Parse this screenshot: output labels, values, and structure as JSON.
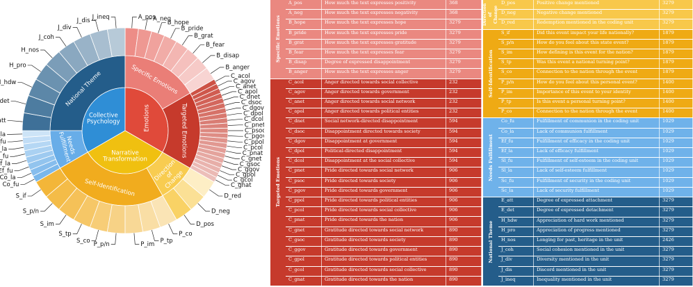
{
  "sunburst": {
    "inner": [
      {
        "label": "Collective Psychology",
        "color": "#2f8ed6"
      },
      {
        "label": "Emotions",
        "color": "#e04a3a"
      },
      {
        "label": "Narrative Transformation",
        "color": "#f0c010"
      }
    ],
    "middle": [
      {
        "label": "National Theme",
        "color": "#245d8a"
      },
      {
        "label": "Needs Fulfillment",
        "color": "#68ade8"
      },
      {
        "label": "Specific Emotions",
        "color": "#ea7e77"
      },
      {
        "label": "Targeted Emotions",
        "color": "#c63a2c"
      },
      {
        "label": "Self-Identification",
        "color": "#f1ac1e"
      },
      {
        "label": "Direction of Change",
        "color": "#f8cc50"
      }
    ],
    "outer_labels": [
      "A_pos",
      "A_neg",
      "B_hope",
      "B_pride",
      "B_grat",
      "B_fear",
      "B_disap",
      "B_anger",
      "C_acol",
      "C_agov",
      "C_anet",
      "C_apol",
      "C_dnet",
      "C_dsoc",
      "C_dgov",
      "C_dpol",
      "C_dcol",
      "C_pnet",
      "C_psoc",
      "C_pgov",
      "C_ppol",
      "C_pcol",
      "C_pnat",
      "C_gnet",
      "C_gsoc",
      "C_ggov",
      "C_gpol",
      "C_gcol",
      "C_gnat",
      "D_pos",
      "D_neg",
      "D_red",
      "S_if",
      "S_p/n",
      "S_im",
      "S_tp",
      "S_co",
      "P_p/n",
      "P_im",
      "P_tp",
      "P_co",
      "Co_fu",
      "Co_la",
      "Ef_fu",
      "Ef_la",
      "Sl_fu",
      "Sl_la",
      "Sc_fu",
      "Sc_la",
      "E_att",
      "E_det",
      "H_hdw",
      "H_pro",
      "H_nos",
      "J_coh",
      "J_div",
      "J_dis",
      "J_ineq"
    ]
  },
  "left_table": [
    {
      "category": "Specific Emotions",
      "color": "#ea8880",
      "rows": [
        [
          "A_pos",
          "How much the text expresses positivity",
          "368"
        ],
        [
          "A_neg",
          "How much the text expresses negativity",
          "368"
        ],
        [
          "B_hope",
          "How much the text expresses hope",
          "3279"
        ],
        [
          "B_pride",
          "How much the text expresses pride",
          "3279"
        ],
        [
          "B_grat",
          "How much the text expresses gratitude",
          "3279"
        ],
        [
          "B_fear",
          "How much the text expresses fear",
          "3279"
        ],
        [
          "B_disap",
          "Degree of expressed disappointment",
          "3279"
        ],
        [
          "B_anger",
          "How much the text expresses anger",
          "3279"
        ]
      ]
    },
    {
      "category": "Targeted Emotions",
      "color": "#c63a2c",
      "rows": [
        [
          "C_acol",
          "Anger directed towards social collective",
          "232"
        ],
        [
          "C_agov",
          "Anger directed towards government",
          "232"
        ],
        [
          "C_anet",
          "Anger directed towards social network",
          "232"
        ],
        [
          "C_apol",
          "Anger directed towards political entities",
          "232"
        ],
        [
          "C_dnet",
          "Social network-directed disappointment",
          "594"
        ],
        [
          "C_dsoc",
          "Disappointment directed towards society",
          "594"
        ],
        [
          "C_dgov",
          "Disappointment at government",
          "594"
        ],
        [
          "C_dpol",
          "Political-directed disappointment",
          "594"
        ],
        [
          "C_dcol",
          "Disappointment at the social collective",
          "594"
        ],
        [
          "C_pnet",
          "Pride directed towards social network",
          "906"
        ],
        [
          "C_psoc",
          "Pride directed towards society",
          "906"
        ],
        [
          "C_pgov",
          "Pride directed towards government",
          "906"
        ],
        [
          "C_ppol",
          "Pride directed towards political entities",
          "906"
        ],
        [
          "C_pcol",
          "Pride directed towards social collective",
          "906"
        ],
        [
          "C_pnat",
          "Pride directed towards the nation",
          "906"
        ],
        [
          "C_gnet",
          "Gratitude directed towards social network",
          "890"
        ],
        [
          "C_gsoc",
          "Gratitude directed towards society",
          "890"
        ],
        [
          "C_ggov",
          "Gratitude directed towards government",
          "890"
        ],
        [
          "C_gpol",
          "Gratitude directed towards political entities",
          "890"
        ],
        [
          "C_gcol",
          "Gratitude directed towards social collective",
          "890"
        ],
        [
          "C_gnat",
          "Gratitude directed towards the nation",
          "890"
        ]
      ]
    }
  ],
  "right_table": [
    {
      "category": "Direction of Change",
      "color": "#f8c84a",
      "rows": [
        [
          "D_pos",
          "Positive change mentioned",
          "3279"
        ],
        [
          "D_neg",
          "Negative change mentioned",
          "3279"
        ],
        [
          "D_red",
          "Redemption mentioned in the coding unit",
          "3279"
        ]
      ]
    },
    {
      "category": "Self-Identification",
      "color": "#efaa14",
      "rows": [
        [
          "S_if",
          "Did this event impact your life nationally?",
          "1879"
        ],
        [
          "S_p/n",
          "How do you feel about this state event?",
          "1879"
        ],
        [
          "S_im",
          "How defining is this event for the nation?",
          "1879"
        ],
        [
          "S_tp",
          "Was this event a national turning point?",
          "1879"
        ],
        [
          "S_co",
          "Connection to the nation through the event",
          "1879"
        ],
        [
          "P_p/n",
          "How do you feel about this personal event?",
          "1400"
        ],
        [
          "P_im",
          "Importance of this event to your identity",
          "1400"
        ],
        [
          "P_tp",
          "Is this event a personal turning point?",
          "1400"
        ],
        [
          "P_co",
          "Connection to the nation through the event",
          "1400"
        ]
      ]
    },
    {
      "category": "Needs Fulfillment",
      "color": "#6fb2ea",
      "rows": [
        [
          "Co_fu",
          "Fulfillment of communion in the coding unit",
          "1029"
        ],
        [
          "Co_la",
          "Lack of communion fulfillment",
          "1029"
        ],
        [
          "Ef_fu",
          "Fulfillment of efficacy in the coding unit",
          "1029"
        ],
        [
          "Ef_la",
          "Lack of efficacy fulfillment",
          "1029"
        ],
        [
          "Sl_fu",
          "Fulfillment of self-esteem in the coding unit",
          "1029"
        ],
        [
          "Sl_la",
          "Lack of self-esteem fulfillment",
          "1029"
        ],
        [
          "Sc_fu",
          "Fulfillment of security in the coding unit",
          "1029"
        ],
        [
          "Sc_la",
          "Lack of security fulfillment",
          "1029"
        ]
      ]
    },
    {
      "category": "National Theme",
      "color": "#245d8a",
      "rows": [
        [
          "E_att",
          "Degree of expressed attachment",
          "3279"
        ],
        [
          "E_det",
          "Degree of expressed detachment",
          "3279"
        ],
        [
          "H_hdw",
          "Appreciation of hard work mentioned",
          "3279"
        ],
        [
          "H_pro",
          "Appreciation of progress mentioned",
          "3279"
        ],
        [
          "H_nos",
          "Longing for past, heritage in the unit",
          "2426"
        ],
        [
          "J_coh",
          "Social cohesion mentioned in the unit",
          "3279"
        ],
        [
          "J_div",
          "Diversity mentioned in the unit",
          "3279"
        ],
        [
          "J_dis",
          "Discord mentioned in the unit",
          "3279"
        ],
        [
          "J_ineq",
          "Inequality mentioned in the unit",
          "3279"
        ]
      ]
    }
  ]
}
